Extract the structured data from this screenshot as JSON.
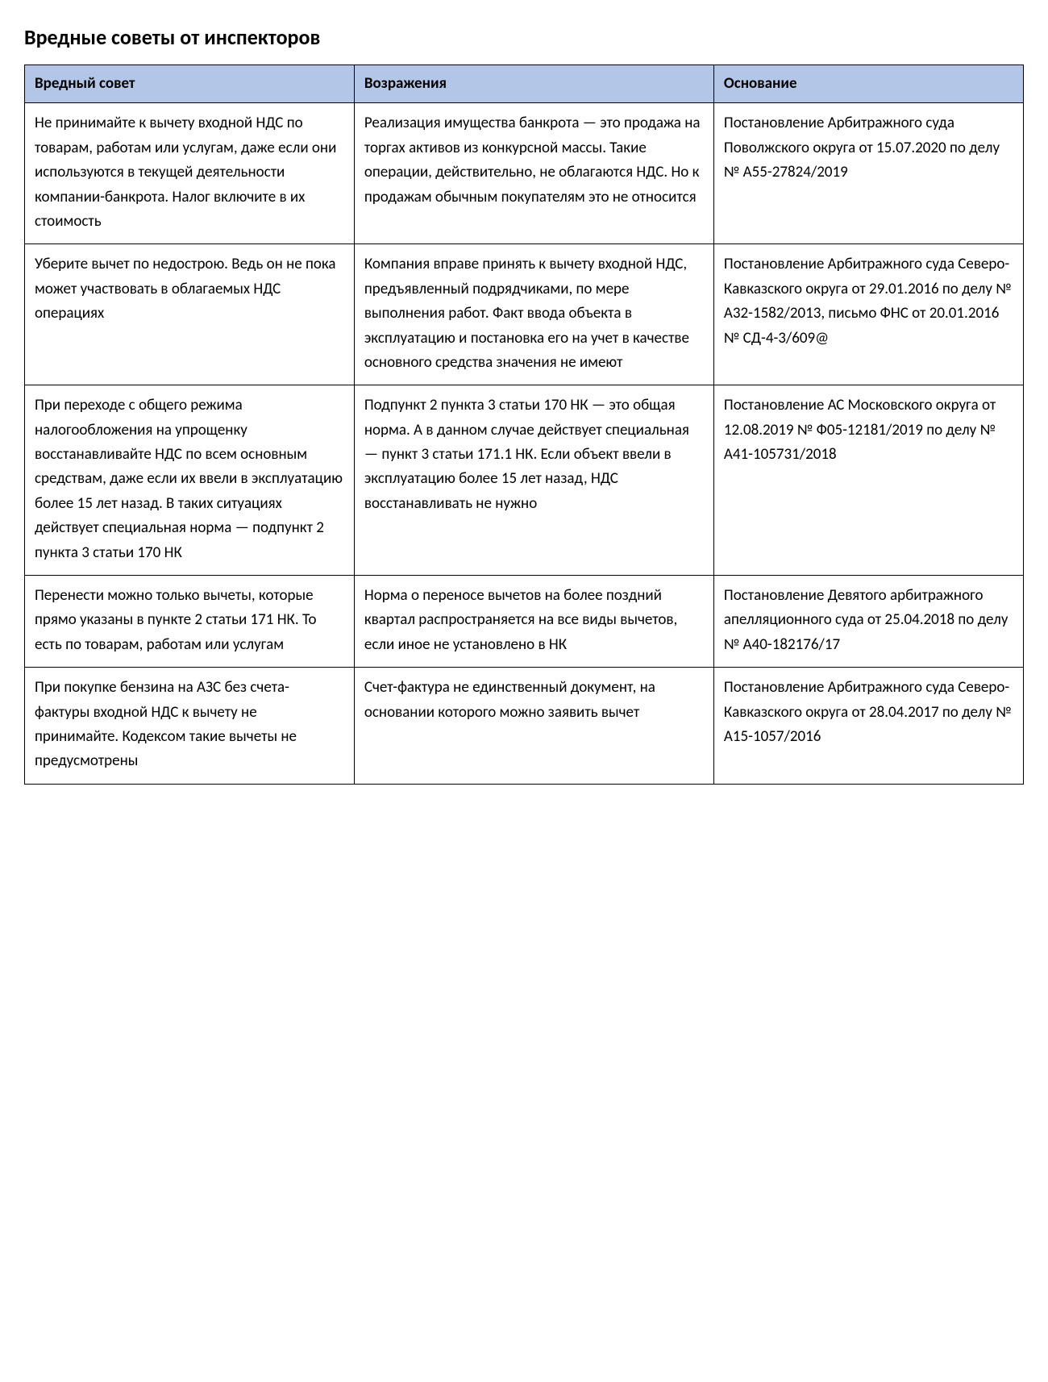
{
  "title": "Вредные советы от инспекторов",
  "table": {
    "header_bg": "#b4c6e7",
    "border_color": "#000000",
    "columns": [
      {
        "label": "Вредный совет",
        "width": "33%"
      },
      {
        "label": "Возражения",
        "width": "36%"
      },
      {
        "label": "Основание",
        "width": "31%"
      }
    ],
    "rows": [
      {
        "advice": "Не принимайте к вычету входной НДС по товарам, работам или услугам, даже если они используются в текущей деятельности компании-банкрота. Налог включите в их стоимость",
        "objection": "Реализация имущества банкрота — это продажа на торгах активов из конкурсной массы. Такие операции, действительно, не облагаются НДС. Но к продажам обычным покупателям это не относится",
        "basis": "Постановление Арбитражного суда Поволжского округа от 15.07.2020 по делу № А55-27824/2019"
      },
      {
        "advice": "Уберите вычет по недострою. Ведь он не пока может участвовать в облагаемых НДС операциях",
        "objection": "Компания вправе принять к вычету входной НДС, предъявленный подрядчиками, по мере выполнения работ. Факт ввода объекта в эксплуатацию и постановка его на учет в качестве основного средства значения не имеют",
        "basis": "Постановление Арбитражного суда Северо-Кавказского округа от 29.01.2016 по делу № А32-1582/2013, письмо ФНС от 20.01.2016 № СД-4-3/609@"
      },
      {
        "advice": "При переходе с общего режима налогообложения на упрощенку восстанавливайте НДС по всем основным средствам, даже если их ввели в эксплуатацию более 15 лет назад. В таких ситуациях действует специальная норма — подпункт 2 пункта 3 статьи 170 НК",
        "objection": "Подпункт 2 пункта 3 статьи 170 НК — это общая норма. А в данном случае действует специальная — пункт 3 статьи 171.1 НК. Если объект ввели в эксплуатацию более 15 лет назад, НДС восстанавливать не нужно",
        "basis": "Постановление АС Московского округа от 12.08.2019 № Ф05-12181/2019 по делу № А41-105731/2018"
      },
      {
        "advice": "Перенести можно только вычеты, которые прямо указаны в пункте 2 статьи 171 НК. То есть по товарам, работам или услугам",
        "objection": "Норма о переносе вычетов на более поздний квартал распространяется на все виды вычетов, если иное не установлено в НК",
        "basis": "Постановление Девятого арбитражного апелляционного суда от 25.04.2018 по делу № А40-182176/17"
      },
      {
        "advice": "При покупке бензина на АЗС без счета-фактуры входной НДС к вычету не принимайте. Кодексом такие вычеты не предусмотрены",
        "objection": "Счет-фактура не единственный документ, на основании которого можно заявить вычет",
        "basis": "Постановление Арбитражного суда Северо-Кавказского округа от 28.04.2017 по делу № А15-1057/2016"
      }
    ]
  }
}
